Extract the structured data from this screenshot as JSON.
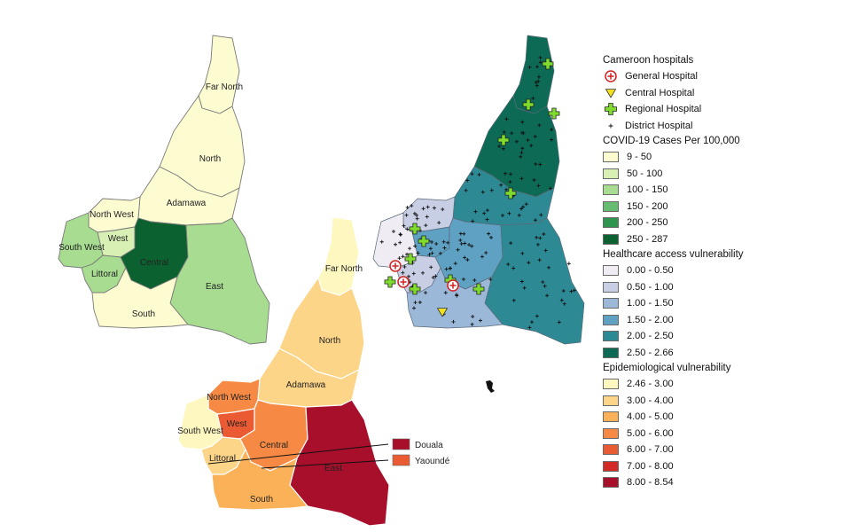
{
  "hospital_legend": {
    "title": "Cameroon hospitals",
    "items": [
      {
        "key": "general",
        "label": "General Hospital",
        "icon": "red-circle-cross-icon"
      },
      {
        "key": "central",
        "label": "Central Hospital",
        "icon": "yellow-triangle-icon"
      },
      {
        "key": "regional",
        "label": "Regional Hospital",
        "icon": "green-cross-icon"
      },
      {
        "key": "district",
        "label": "District Hospital",
        "icon": "small-plus-icon"
      }
    ]
  },
  "covid_legend": {
    "title": "COVID-19 Cases Per 100,000",
    "classes": [
      {
        "label": "9 - 50",
        "color": "#fdfbd0"
      },
      {
        "label": "50 - 100",
        "color": "#d8f0b4"
      },
      {
        "label": "100 - 150",
        "color": "#a7dc91"
      },
      {
        "label": "150 - 200",
        "color": "#66bc71"
      },
      {
        "label": "200 - 250",
        "color": "#2e954e"
      },
      {
        "label": "250 - 287",
        "color": "#0b6130"
      }
    ]
  },
  "access_legend": {
    "title": "Healthcare access vulnerability",
    "classes": [
      {
        "label": "0.00 - 0.50",
        "color": "#f0ecf4"
      },
      {
        "label": "0.50 - 1.00",
        "color": "#c8cee4"
      },
      {
        "label": "1.00 - 1.50",
        "color": "#9bb8d8"
      },
      {
        "label": "1.50 - 2.00",
        "color": "#5ea1c2"
      },
      {
        "label": "2.00 - 2.50",
        "color": "#2d8a94"
      },
      {
        "label": "2.50 - 2.66",
        "color": "#0c6a55"
      }
    ]
  },
  "epi_legend": {
    "title": "Epidemiological vulnerability",
    "classes": [
      {
        "label": "2.46 - 3.00",
        "color": "#fef8c0"
      },
      {
        "label": "3.00 - 4.00",
        "color": "#fdd588"
      },
      {
        "label": "4.00 - 5.00",
        "color": "#fbb157"
      },
      {
        "label": "5.00 - 6.00",
        "color": "#f68a44"
      },
      {
        "label": "6.00 - 7.00",
        "color": "#ea5a33"
      },
      {
        "label": "7.00 - 8.00",
        "color": "#d42a27"
      },
      {
        "label": "8.00 - 8.54",
        "color": "#a80f2b"
      }
    ]
  },
  "covid_map": {
    "regions": [
      {
        "key": "far_north",
        "name": "Far North",
        "class": 0
      },
      {
        "key": "north",
        "name": "North",
        "class": 0
      },
      {
        "key": "adamawa",
        "name": "Adamawa",
        "class": 0
      },
      {
        "key": "north_west",
        "name": "North West",
        "class": 0
      },
      {
        "key": "west",
        "name": "West",
        "class": 1
      },
      {
        "key": "south_west",
        "name": "South West",
        "class": 2
      },
      {
        "key": "littoral",
        "name": "Littoral",
        "class": 2
      },
      {
        "key": "central",
        "name": "Central",
        "class": 5
      },
      {
        "key": "east",
        "name": "East",
        "class": 2
      },
      {
        "key": "south",
        "name": "South",
        "class": 0
      }
    ]
  },
  "access_map": {
    "regions": [
      {
        "key": "far_north",
        "class": 5
      },
      {
        "key": "north",
        "class": 5
      },
      {
        "key": "adamawa",
        "class": 4
      },
      {
        "key": "north_west",
        "class": 1
      },
      {
        "key": "west",
        "class": 3
      },
      {
        "key": "south_west",
        "class": 0
      },
      {
        "key": "littoral",
        "class": 1
      },
      {
        "key": "central",
        "class": 3
      },
      {
        "key": "east",
        "class": 4
      },
      {
        "key": "south",
        "class": 2
      }
    ]
  },
  "epi_map": {
    "regions": [
      {
        "key": "far_north",
        "name": "Far North",
        "class": 0
      },
      {
        "key": "north",
        "name": "North",
        "class": 1
      },
      {
        "key": "adamawa",
        "name": "Adamawa",
        "class": 1
      },
      {
        "key": "north_west",
        "name": "North West",
        "class": 3
      },
      {
        "key": "west",
        "name": "West",
        "class": 4
      },
      {
        "key": "south_west",
        "name": "South West",
        "class": 0
      },
      {
        "key": "littoral",
        "name": "Littoral",
        "class": 1
      },
      {
        "key": "central",
        "name": "Central",
        "class": 3
      },
      {
        "key": "east",
        "name": "East",
        "class": 6
      },
      {
        "key": "south",
        "name": "South",
        "class": 2
      }
    ],
    "callouts": [
      {
        "label": "Douala",
        "class": 6
      },
      {
        "label": "Yaoundé",
        "class": 4
      }
    ]
  }
}
